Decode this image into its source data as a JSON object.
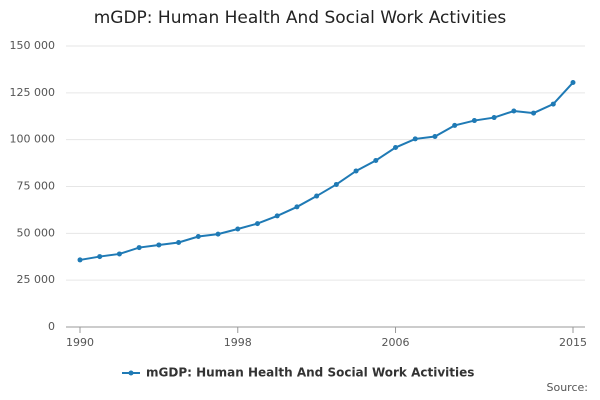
{
  "chart_data": {
    "type": "line",
    "title": "mGDP: Human Health And Social Work Activities",
    "source": "Source:",
    "x": [
      1990,
      1991,
      1992,
      1993,
      1994,
      1995,
      1996,
      1997,
      1998,
      1999,
      2000,
      2001,
      2002,
      2003,
      2004,
      2005,
      2006,
      2007,
      2008,
      2009,
      2010,
      2011,
      2012,
      2013,
      2014,
      2015
    ],
    "series": [
      {
        "name": "mGDP: Human Health And Social Work Activities",
        "color": "#1f7ab5",
        "values": [
          35800,
          37600,
          39000,
          42400,
          43800,
          45100,
          48300,
          49600,
          52300,
          55200,
          59300,
          64100,
          69900,
          76100,
          83300,
          88900,
          95800,
          100400,
          101700,
          107600,
          110200,
          111800,
          115300,
          114200,
          119000,
          130500
        ]
      }
    ],
    "xlim": [
      1990,
      2015
    ],
    "xticks": [
      1990,
      1998,
      2006,
      2015
    ],
    "ylim": [
      0,
      150000
    ],
    "yticks": [
      0,
      {
        "value": 25000,
        "label": "25 000"
      },
      {
        "value": 50000,
        "label": "50 000"
      },
      {
        "value": 75000,
        "label": "75 000"
      },
      {
        "value": 100000,
        "label": "100 000"
      },
      {
        "value": 125000,
        "label": "125 000"
      },
      {
        "value": 150000,
        "label": "150 000"
      }
    ],
    "grid": true
  }
}
